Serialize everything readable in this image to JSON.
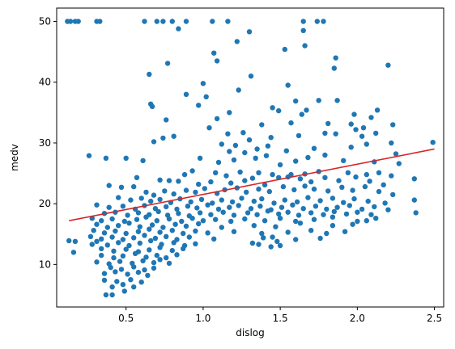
{
  "chart_data": {
    "type": "scatter",
    "xlabel": "dislog",
    "ylabel": "medv",
    "xlim": [
      0.05,
      2.56
    ],
    "ylim": [
      3,
      52.2
    ],
    "xticks": [
      0.5,
      1.0,
      1.5,
      2.0,
      2.5
    ],
    "xtick_labels": [
      "0.5",
      "1.0",
      "1.5",
      "2.0",
      "2.5"
    ],
    "yticks": [
      10,
      20,
      30,
      40,
      50
    ],
    "ytick_labels": [
      "10",
      "20",
      "30",
      "40",
      "50"
    ],
    "grid": false,
    "colors": {
      "points": "#1f77b4",
      "fit_line": "#d62728",
      "axes": "#000000"
    },
    "fit_line": {
      "x": [
        0.13,
        2.5
      ],
      "y": [
        17.2,
        29.0
      ]
    },
    "points": [
      [
        0.12,
        50
      ],
      [
        0.14,
        50
      ],
      [
        0.17,
        50
      ],
      [
        0.19,
        50
      ],
      [
        0.31,
        50
      ],
      [
        0.33,
        50
      ],
      [
        0.62,
        50
      ],
      [
        0.7,
        50
      ],
      [
        0.74,
        50
      ],
      [
        0.8,
        50
      ],
      [
        0.89,
        50
      ],
      [
        1.06,
        50
      ],
      [
        1.16,
        50
      ],
      [
        1.65,
        50
      ],
      [
        1.74,
        50
      ],
      [
        1.78,
        50
      ],
      [
        0.84,
        48.8
      ],
      [
        1.3,
        48.3
      ],
      [
        1.65,
        48.5
      ],
      [
        1.22,
        46.7
      ],
      [
        1.53,
        45.4
      ],
      [
        1.66,
        46
      ],
      [
        1.07,
        44.8
      ],
      [
        1.09,
        43.5
      ],
      [
        1.86,
        44
      ],
      [
        2.2,
        42.8
      ],
      [
        1.85,
        42.3
      ],
      [
        0.77,
        43.1
      ],
      [
        0.65,
        41.3
      ],
      [
        1.0,
        39.8
      ],
      [
        1.23,
        38.7
      ],
      [
        1.31,
        41
      ],
      [
        1.55,
        39.5
      ],
      [
        0.89,
        38
      ],
      [
        1.02,
        37.6
      ],
      [
        1.6,
        36.9
      ],
      [
        1.75,
        37
      ],
      [
        1.87,
        37
      ],
      [
        0.66,
        36.4
      ],
      [
        0.67,
        36
      ],
      [
        0.97,
        36.2
      ],
      [
        1.45,
        35.8
      ],
      [
        1.49,
        35.3
      ],
      [
        1.67,
        35.4
      ],
      [
        1.98,
        34.7
      ],
      [
        2.13,
        35.4
      ],
      [
        1.17,
        35
      ],
      [
        0.76,
        33.8
      ],
      [
        1.09,
        34
      ],
      [
        1.38,
        33
      ],
      [
        1.57,
        33.3
      ],
      [
        1.64,
        34.7
      ],
      [
        1.81,
        33.2
      ],
      [
        1.96,
        33.1
      ],
      [
        2.04,
        32.5
      ],
      [
        2.09,
        34.2
      ],
      [
        2.23,
        33
      ],
      [
        1.04,
        32.5
      ],
      [
        1.16,
        31.5
      ],
      [
        1.26,
        31.7
      ],
      [
        1.3,
        30.5
      ],
      [
        1.44,
        30.9
      ],
      [
        1.62,
        31.2
      ],
      [
        1.79,
        31.6
      ],
      [
        1.86,
        31.5
      ],
      [
        1.99,
        32.2
      ],
      [
        2.03,
        31.1
      ],
      [
        2.12,
        31.6
      ],
      [
        2.49,
        30.1
      ],
      [
        0.68,
        30.2
      ],
      [
        0.74,
        30.8
      ],
      [
        0.81,
        31.1
      ],
      [
        1.12,
        29.8
      ],
      [
        1.21,
        29.6
      ],
      [
        1.17,
        28.6
      ],
      [
        1.27,
        28.4
      ],
      [
        1.35,
        29
      ],
      [
        1.42,
        29.5
      ],
      [
        1.54,
        28.7
      ],
      [
        1.72,
        29.1
      ],
      [
        1.79,
        28
      ],
      [
        1.96,
        29.3
      ],
      [
        2.06,
        29.8
      ],
      [
        2.22,
        30
      ],
      [
        2.25,
        28.2
      ],
      [
        0.26,
        27.9
      ],
      [
        0.37,
        27.5
      ],
      [
        0.5,
        27.5
      ],
      [
        0.61,
        27.1
      ],
      [
        0.98,
        27.5
      ],
      [
        1.1,
        26.8
      ],
      [
        1.2,
        27.2
      ],
      [
        1.34,
        27.5
      ],
      [
        1.41,
        27.9
      ],
      [
        1.5,
        26.4
      ],
      [
        1.6,
        27
      ],
      [
        1.68,
        27.6
      ],
      [
        1.91,
        27.1
      ],
      [
        2.11,
        26.9
      ],
      [
        2.27,
        26.6
      ],
      [
        0.88,
        24.8
      ],
      [
        0.93,
        25.4
      ],
      [
        1.08,
        25.1
      ],
      [
        1.15,
        24.6
      ],
      [
        1.24,
        25.2
      ],
      [
        1.36,
        25.1
      ],
      [
        1.45,
        24.8
      ],
      [
        1.55,
        24.4
      ],
      [
        1.66,
        24.9
      ],
      [
        1.75,
        25.3
      ],
      [
        1.94,
        25.1
      ],
      [
        2.06,
        24.8
      ],
      [
        2.14,
        25.1
      ],
      [
        2.22,
        24.6
      ],
      [
        2.37,
        24.1
      ],
      [
        0.57,
        24.3
      ],
      [
        0.72,
        23.9
      ],
      [
        0.78,
        23.8
      ],
      [
        0.84,
        23.7
      ],
      [
        0.97,
        23.2
      ],
      [
        1.05,
        23.6
      ],
      [
        1.18,
        23.4
      ],
      [
        1.27,
        23.8
      ],
      [
        1.32,
        24.2
      ],
      [
        1.4,
        23.1
      ],
      [
        1.49,
        24.3
      ],
      [
        1.57,
        24.8
      ],
      [
        1.63,
        24.1
      ],
      [
        1.7,
        23.6
      ],
      [
        1.79,
        24.3
      ],
      [
        1.88,
        23.8
      ],
      [
        1.99,
        24.4
      ],
      [
        2.08,
        23.7
      ],
      [
        2.17,
        23.1
      ],
      [
        0.39,
        23
      ],
      [
        0.47,
        22.7
      ],
      [
        0.55,
        22.8
      ],
      [
        0.63,
        21.9
      ],
      [
        0.68,
        21.4
      ],
      [
        0.75,
        22.1
      ],
      [
        0.81,
        21.6
      ],
      [
        0.89,
        22.2
      ],
      [
        0.95,
        21.9
      ],
      [
        1.01,
        22.5
      ],
      [
        1.09,
        21.7
      ],
      [
        1.14,
        22.3
      ],
      [
        1.22,
        22.6
      ],
      [
        1.28,
        21.9
      ],
      [
        1.36,
        22.4
      ],
      [
        1.43,
        22
      ],
      [
        1.52,
        22.8
      ],
      [
        1.59,
        22.3
      ],
      [
        1.66,
        22.9
      ],
      [
        1.72,
        22.4
      ],
      [
        1.81,
        22.1
      ],
      [
        1.9,
        22.7
      ],
      [
        1.97,
        22.2
      ],
      [
        2.05,
        22.8
      ],
      [
        2.14,
        22
      ],
      [
        2.23,
        21.5
      ],
      [
        0.45,
        21
      ],
      [
        0.53,
        20.6
      ],
      [
        0.6,
        20.9
      ],
      [
        0.66,
        20.4
      ],
      [
        0.72,
        20.7
      ],
      [
        0.79,
        20.2
      ],
      [
        0.85,
        20.8
      ],
      [
        0.92,
        20.3
      ],
      [
        0.99,
        20.7
      ],
      [
        1.06,
        20.1
      ],
      [
        1.12,
        20.6
      ],
      [
        1.19,
        20.3
      ],
      [
        1.25,
        20.9
      ],
      [
        1.33,
        20.4
      ],
      [
        1.38,
        20.8
      ],
      [
        1.46,
        20.1
      ],
      [
        1.53,
        20.6
      ],
      [
        1.61,
        20.3
      ],
      [
        1.68,
        21
      ],
      [
        1.76,
        20.5
      ],
      [
        1.84,
        20.9
      ],
      [
        1.91,
        20.2
      ],
      [
        1.98,
        20.8
      ],
      [
        2.07,
        20.4
      ],
      [
        2.18,
        20.1
      ],
      [
        2.37,
        20.6
      ],
      [
        0.31,
        19.8
      ],
      [
        0.39,
        19.4
      ],
      [
        0.48,
        19.6
      ],
      [
        0.56,
        19.1
      ],
      [
        0.62,
        19.7
      ],
      [
        0.69,
        19.2
      ],
      [
        0.76,
        19.5
      ],
      [
        0.83,
        19.1
      ],
      [
        0.9,
        19.6
      ],
      [
        0.96,
        19.3
      ],
      [
        1.03,
        19.8
      ],
      [
        1.1,
        19.1
      ],
      [
        1.17,
        19.4
      ],
      [
        1.23,
        19.7
      ],
      [
        1.31,
        19.2
      ],
      [
        1.37,
        19.6
      ],
      [
        1.44,
        19
      ],
      [
        1.51,
        19.4
      ],
      [
        1.58,
        19.8
      ],
      [
        1.65,
        19.2
      ],
      [
        1.73,
        19.6
      ],
      [
        1.8,
        19.1
      ],
      [
        1.87,
        19.4
      ],
      [
        1.95,
        19.7
      ],
      [
        2.03,
        19.1
      ],
      [
        2.11,
        19.5
      ],
      [
        2.2,
        19
      ],
      [
        0.36,
        18.4
      ],
      [
        0.43,
        18.6
      ],
      [
        0.51,
        18.1
      ],
      [
        0.58,
        18.5
      ],
      [
        0.65,
        18.2
      ],
      [
        0.71,
        18.7
      ],
      [
        0.77,
        18.1
      ],
      [
        0.84,
        18.4
      ],
      [
        0.91,
        18
      ],
      [
        0.98,
        18.5
      ],
      [
        1.05,
        18.2
      ],
      [
        1.13,
        18.6
      ],
      [
        1.2,
        18.1
      ],
      [
        1.29,
        18.5
      ],
      [
        1.35,
        18.2
      ],
      [
        1.42,
        18.8
      ],
      [
        1.49,
        18.3
      ],
      [
        1.55,
        18.6
      ],
      [
        1.62,
        18.1
      ],
      [
        1.7,
        18.5
      ],
      [
        1.78,
        18.2
      ],
      [
        1.85,
        18.7
      ],
      [
        1.93,
        18.3
      ],
      [
        2.0,
        18.6
      ],
      [
        2.09,
        18.2
      ],
      [
        2.38,
        18.5
      ],
      [
        0.28,
        17.6
      ],
      [
        0.34,
        17.2
      ],
      [
        0.41,
        17.5
      ],
      [
        0.49,
        17.1
      ],
      [
        0.57,
        17.4
      ],
      [
        0.63,
        17.8
      ],
      [
        0.7,
        17.2
      ],
      [
        0.78,
        17.5
      ],
      [
        0.86,
        17.1
      ],
      [
        0.93,
        17.6
      ],
      [
        1.0,
        17.2
      ],
      [
        1.08,
        17.4
      ],
      [
        1.18,
        17.1
      ],
      [
        1.27,
        17.5
      ],
      [
        1.4,
        17.2
      ],
      [
        1.5,
        17.6
      ],
      [
        1.6,
        17.1
      ],
      [
        1.72,
        17.4
      ],
      [
        1.84,
        17.8
      ],
      [
        2.06,
        17.2
      ],
      [
        2.12,
        17.6
      ],
      [
        0.31,
        16.6
      ],
      [
        0.38,
        16.1
      ],
      [
        0.45,
        16.4
      ],
      [
        0.52,
        16.8
      ],
      [
        0.59,
        16.2
      ],
      [
        0.67,
        16.5
      ],
      [
        0.74,
        16.1
      ],
      [
        0.82,
        16.6
      ],
      [
        0.89,
        16.3
      ],
      [
        0.97,
        16.7
      ],
      [
        1.12,
        16.1
      ],
      [
        1.33,
        16.4
      ],
      [
        1.47,
        16.2
      ],
      [
        1.63,
        16.8
      ],
      [
        1.84,
        16.4
      ],
      [
        1.97,
        16.6
      ],
      [
        2.0,
        17.1
      ],
      [
        0.29,
        15.6
      ],
      [
        0.36,
        15.2
      ],
      [
        0.43,
        15.5
      ],
      [
        0.5,
        15.1
      ],
      [
        0.58,
        15.4
      ],
      [
        0.65,
        15.8
      ],
      [
        0.72,
        15.3
      ],
      [
        0.8,
        15.6
      ],
      [
        0.87,
        15.1
      ],
      [
        0.95,
        15.5
      ],
      [
        1.03,
        15.2
      ],
      [
        1.2,
        15.4
      ],
      [
        1.38,
        15.1
      ],
      [
        1.55,
        15.3
      ],
      [
        1.7,
        15.6
      ],
      [
        1.76,
        14.3
      ],
      [
        1.8,
        15.1
      ],
      [
        1.92,
        15.4
      ],
      [
        0.27,
        14.6
      ],
      [
        0.34,
        14.2
      ],
      [
        0.41,
        14.5
      ],
      [
        0.48,
        14.1
      ],
      [
        0.55,
        14.4
      ],
      [
        0.62,
        14.8
      ],
      [
        0.69,
        14.3
      ],
      [
        0.76,
        14.6
      ],
      [
        0.83,
        14.1
      ],
      [
        0.91,
        14.5
      ],
      [
        1.07,
        14.2
      ],
      [
        1.39,
        14.4
      ],
      [
        1.45,
        14.5
      ],
      [
        1.48,
        13.8
      ],
      [
        1.6,
        14.1
      ],
      [
        0.13,
        13.9
      ],
      [
        0.17,
        13.8
      ],
      [
        0.28,
        13.3
      ],
      [
        0.31,
        13.8
      ],
      [
        0.38,
        13.2
      ],
      [
        0.45,
        13.6
      ],
      [
        0.52,
        13.1
      ],
      [
        0.59,
        13.5
      ],
      [
        0.66,
        13.9
      ],
      [
        0.73,
        13.3
      ],
      [
        0.81,
        13.6
      ],
      [
        0.88,
        13.1
      ],
      [
        0.95,
        13.4
      ],
      [
        1.32,
        13.5
      ],
      [
        1.36,
        13.3
      ],
      [
        1.44,
        12.9
      ],
      [
        1.5,
        13.1
      ],
      [
        0.16,
        12
      ],
      [
        0.34,
        12.6
      ],
      [
        0.42,
        12.2
      ],
      [
        0.5,
        12.5
      ],
      [
        0.58,
        12.1
      ],
      [
        0.65,
        12.4
      ],
      [
        0.72,
        12.8
      ],
      [
        0.8,
        12.3
      ],
      [
        0.87,
        12.6
      ],
      [
        0.34,
        11.5
      ],
      [
        0.42,
        11.1
      ],
      [
        0.48,
        11.4
      ],
      [
        0.56,
        11.8
      ],
      [
        0.63,
        11.2
      ],
      [
        0.7,
        11.5
      ],
      [
        0.76,
        11.1
      ],
      [
        0.83,
        11.6
      ],
      [
        0.31,
        10.4
      ],
      [
        0.39,
        10.1
      ],
      [
        0.46,
        10.5
      ],
      [
        0.54,
        10.2
      ],
      [
        0.61,
        10.6
      ],
      [
        0.68,
        10.3
      ],
      [
        0.72,
        10.8
      ],
      [
        0.78,
        10.2
      ],
      [
        0.4,
        9.5
      ],
      [
        0.47,
        9.2
      ],
      [
        0.55,
        9.6
      ],
      [
        0.62,
        9.1
      ],
      [
        0.68,
        9.4
      ],
      [
        0.36,
        8.5
      ],
      [
        0.43,
        8.8
      ],
      [
        0.51,
        8.4
      ],
      [
        0.58,
        8.7
      ],
      [
        0.64,
        8.2
      ],
      [
        0.36,
        7.4
      ],
      [
        0.44,
        7.2
      ],
      [
        0.53,
        7.5
      ],
      [
        0.6,
        7.1
      ],
      [
        0.41,
        6.3
      ],
      [
        0.48,
        6.7
      ],
      [
        0.55,
        6.3
      ],
      [
        0.37,
        5
      ],
      [
        0.41,
        5
      ],
      [
        0.49,
        5.6
      ]
    ]
  }
}
